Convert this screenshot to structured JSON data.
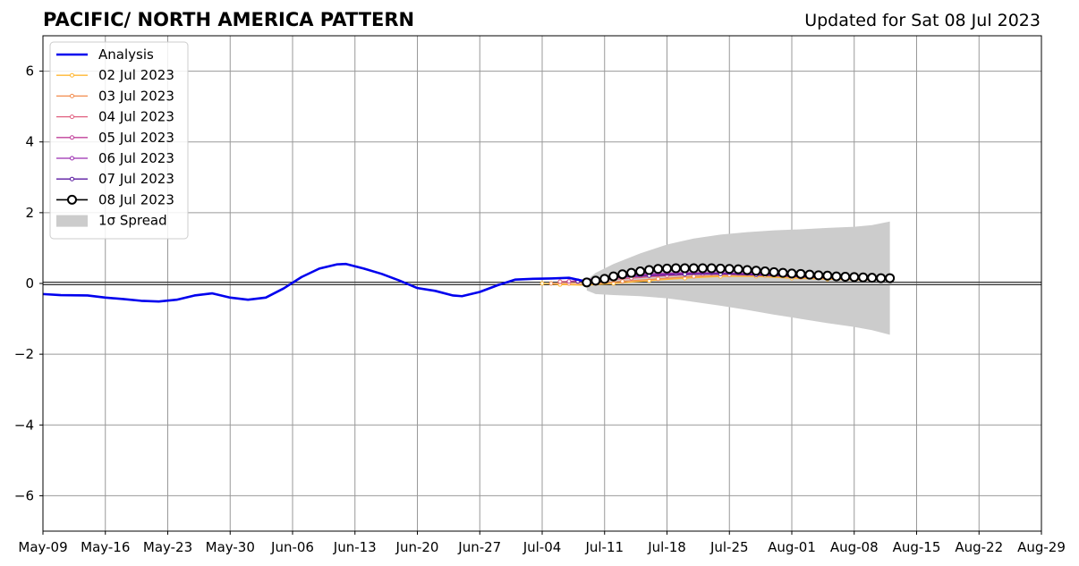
{
  "chart_data": {
    "type": "line",
    "title": "PACIFIC/ NORTH AMERICA PATTERN",
    "subtitle": "Updated for Sat 08 Jul 2023",
    "xlabel": "",
    "ylabel": "",
    "x_range": [
      "2023-05-09",
      "2023-08-29"
    ],
    "ylim": [
      -7,
      7
    ],
    "grid": true,
    "legend_position": "top-left",
    "x_ticks": [
      {
        "date": "2023-05-09",
        "label": "May-09"
      },
      {
        "date": "2023-05-16",
        "label": "May-16"
      },
      {
        "date": "2023-05-23",
        "label": "May-23"
      },
      {
        "date": "2023-05-30",
        "label": "May-30"
      },
      {
        "date": "2023-06-06",
        "label": "Jun-06"
      },
      {
        "date": "2023-06-13",
        "label": "Jun-13"
      },
      {
        "date": "2023-06-20",
        "label": "Jun-20"
      },
      {
        "date": "2023-06-27",
        "label": "Jun-27"
      },
      {
        "date": "2023-07-04",
        "label": "Jul-04"
      },
      {
        "date": "2023-07-11",
        "label": "Jul-11"
      },
      {
        "date": "2023-07-18",
        "label": "Jul-18"
      },
      {
        "date": "2023-07-25",
        "label": "Jul-25"
      },
      {
        "date": "2023-08-01",
        "label": "Aug-01"
      },
      {
        "date": "2023-08-08",
        "label": "Aug-08"
      },
      {
        "date": "2023-08-15",
        "label": "Aug-15"
      },
      {
        "date": "2023-08-22",
        "label": "Aug-22"
      },
      {
        "date": "2023-08-29",
        "label": "Aug-29"
      }
    ],
    "y_ticks": [
      {
        "value": 6,
        "label": "6"
      },
      {
        "value": 4,
        "label": "4"
      },
      {
        "value": 2,
        "label": "2"
      },
      {
        "value": 0,
        "label": "0"
      },
      {
        "value": -2,
        "label": "−2"
      },
      {
        "value": -4,
        "label": "−4"
      },
      {
        "value": -6,
        "label": "−6"
      }
    ],
    "analysis": {
      "name": "Analysis",
      "color": "#0000ee",
      "points": [
        [
          "2023-05-09",
          -0.3
        ],
        [
          "2023-05-11",
          -0.33
        ],
        [
          "2023-05-14",
          -0.34
        ],
        [
          "2023-05-16",
          -0.4
        ],
        [
          "2023-05-18",
          -0.44
        ],
        [
          "2023-05-20",
          -0.49
        ],
        [
          "2023-05-22",
          -0.51
        ],
        [
          "2023-05-24",
          -0.46
        ],
        [
          "2023-05-26",
          -0.34
        ],
        [
          "2023-05-28",
          -0.28
        ],
        [
          "2023-05-30",
          -0.4
        ],
        [
          "2023-06-01",
          -0.46
        ],
        [
          "2023-06-03",
          -0.4
        ],
        [
          "2023-06-05",
          -0.14
        ],
        [
          "2023-06-07",
          0.18
        ],
        [
          "2023-06-09",
          0.42
        ],
        [
          "2023-06-11",
          0.54
        ],
        [
          "2023-06-12",
          0.55
        ],
        [
          "2023-06-14",
          0.42
        ],
        [
          "2023-06-16",
          0.27
        ],
        [
          "2023-06-18",
          0.08
        ],
        [
          "2023-06-20",
          -0.13
        ],
        [
          "2023-06-22",
          -0.21
        ],
        [
          "2023-06-24",
          -0.34
        ],
        [
          "2023-06-25",
          -0.36
        ],
        [
          "2023-06-27",
          -0.24
        ],
        [
          "2023-06-29",
          -0.05
        ],
        [
          "2023-07-01",
          0.11
        ],
        [
          "2023-07-03",
          0.13
        ],
        [
          "2023-07-05",
          0.14
        ],
        [
          "2023-07-07",
          0.16
        ],
        [
          "2023-07-09",
          0.05
        ]
      ]
    },
    "forecasts": [
      {
        "name": "02 Jul 2023",
        "color": "#ffb733",
        "points": [
          [
            "2023-07-04",
            0.0
          ],
          [
            "2023-07-06",
            -0.03
          ],
          [
            "2023-07-09",
            -0.05
          ],
          [
            "2023-07-12",
            0.0
          ],
          [
            "2023-07-16",
            0.08
          ],
          [
            "2023-07-20",
            0.15
          ],
          [
            "2023-07-24",
            0.2
          ],
          [
            "2023-07-28",
            0.2
          ],
          [
            "2023-08-01",
            0.15
          ],
          [
            "2023-08-05",
            0.12
          ],
          [
            "2023-08-09",
            0.1
          ]
        ]
      },
      {
        "name": "03 Jul 2023",
        "color": "#f28b4c",
        "points": [
          [
            "2023-07-05",
            0.0
          ],
          [
            "2023-07-07",
            0.0
          ],
          [
            "2023-07-10",
            0.0
          ],
          [
            "2023-07-13",
            0.06
          ],
          [
            "2023-07-17",
            0.13
          ],
          [
            "2023-07-21",
            0.2
          ],
          [
            "2023-07-25",
            0.24
          ],
          [
            "2023-07-29",
            0.22
          ],
          [
            "2023-08-02",
            0.17
          ],
          [
            "2023-08-06",
            0.13
          ],
          [
            "2023-08-10",
            0.1
          ]
        ]
      },
      {
        "name": "04 Jul 2023",
        "color": "#e06080",
        "points": [
          [
            "2023-07-06",
            0.05
          ],
          [
            "2023-07-08",
            0.06
          ],
          [
            "2023-07-11",
            0.1
          ],
          [
            "2023-07-14",
            0.15
          ],
          [
            "2023-07-18",
            0.22
          ],
          [
            "2023-07-22",
            0.27
          ],
          [
            "2023-07-26",
            0.28
          ],
          [
            "2023-07-30",
            0.25
          ],
          [
            "2023-08-03",
            0.2
          ],
          [
            "2023-08-07",
            0.16
          ],
          [
            "2023-08-11",
            0.12
          ]
        ]
      },
      {
        "name": "05 Jul 2023",
        "color": "#c0409a",
        "points": [
          [
            "2023-07-07",
            0.06
          ],
          [
            "2023-07-09",
            0.1
          ],
          [
            "2023-07-12",
            0.16
          ],
          [
            "2023-07-15",
            0.22
          ],
          [
            "2023-07-19",
            0.28
          ],
          [
            "2023-07-23",
            0.3
          ],
          [
            "2023-07-27",
            0.28
          ],
          [
            "2023-07-31",
            0.24
          ],
          [
            "2023-08-04",
            0.2
          ],
          [
            "2023-08-08",
            0.16
          ],
          [
            "2023-08-12",
            0.13
          ]
        ]
      },
      {
        "name": "06 Jul 2023",
        "color": "#9a2cb0",
        "points": [
          [
            "2023-07-08",
            0.08
          ],
          [
            "2023-07-10",
            0.14
          ],
          [
            "2023-07-13",
            0.22
          ],
          [
            "2023-07-16",
            0.27
          ],
          [
            "2023-07-20",
            0.3
          ],
          [
            "2023-07-24",
            0.3
          ],
          [
            "2023-07-28",
            0.26
          ],
          [
            "2023-08-01",
            0.2
          ],
          [
            "2023-08-05",
            0.17
          ],
          [
            "2023-08-09",
            0.14
          ]
        ]
      },
      {
        "name": "07 Jul 2023",
        "color": "#5a1aa0",
        "points": [
          [
            "2023-07-08",
            0.06
          ],
          [
            "2023-07-10",
            0.12
          ],
          [
            "2023-07-13",
            0.18
          ],
          [
            "2023-07-16",
            0.22
          ],
          [
            "2023-07-20",
            0.26
          ],
          [
            "2023-07-24",
            0.27
          ],
          [
            "2023-07-28",
            0.24
          ],
          [
            "2023-08-01",
            0.2
          ],
          [
            "2023-08-05",
            0.16
          ],
          [
            "2023-08-09",
            0.13
          ]
        ]
      }
    ],
    "latest_forecast": {
      "name": "08 Jul 2023",
      "color": "#000000",
      "marker": "open-circle",
      "start": "2023-07-09",
      "values": [
        0.03,
        0.08,
        0.13,
        0.2,
        0.26,
        0.3,
        0.34,
        0.38,
        0.41,
        0.42,
        0.43,
        0.43,
        0.43,
        0.43,
        0.43,
        0.42,
        0.41,
        0.4,
        0.38,
        0.36,
        0.34,
        0.32,
        0.3,
        0.28,
        0.27,
        0.25,
        0.23,
        0.22,
        0.2,
        0.19,
        0.18,
        0.17,
        0.16,
        0.15,
        0.15
      ]
    },
    "spread": {
      "name": "1σ Spread",
      "color": "#cccccc",
      "points": [
        [
          "2023-07-09",
          -0.2,
          0.1
        ],
        [
          "2023-07-10",
          -0.3,
          0.3
        ],
        [
          "2023-07-12",
          -0.33,
          0.55
        ],
        [
          "2023-07-15",
          -0.36,
          0.85
        ],
        [
          "2023-07-18",
          -0.42,
          1.1
        ],
        [
          "2023-07-21",
          -0.52,
          1.27
        ],
        [
          "2023-07-24",
          -0.63,
          1.38
        ],
        [
          "2023-07-27",
          -0.75,
          1.45
        ],
        [
          "2023-07-30",
          -0.88,
          1.5
        ],
        [
          "2023-08-02",
          -1.0,
          1.53
        ],
        [
          "2023-08-05",
          -1.12,
          1.57
        ],
        [
          "2023-08-08",
          -1.23,
          1.6
        ],
        [
          "2023-08-10",
          -1.32,
          1.65
        ],
        [
          "2023-08-12",
          -1.45,
          1.75
        ]
      ]
    },
    "zero_line": 0
  }
}
